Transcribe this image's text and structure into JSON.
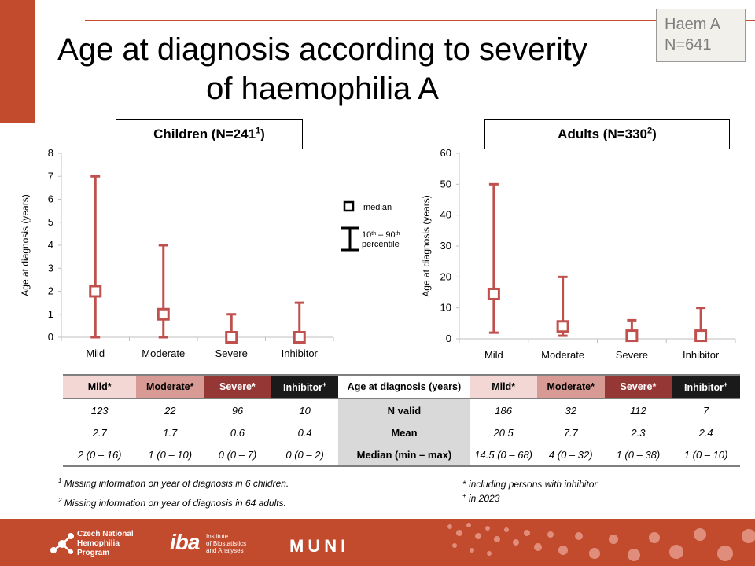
{
  "title": "Age at diagnosis according to severity of haemophilia A",
  "badge": {
    "line1": "Haem A",
    "line2": "N=641"
  },
  "charts": {
    "children": {
      "title": "Children (N=241",
      "sup": "1",
      "suffix": ")"
    },
    "adults": {
      "title": "Adults (N=330",
      "sup": "2",
      "suffix": ")"
    }
  },
  "legend": {
    "median": "median",
    "range_a": "10",
    "range_a_sup": "th",
    "range_b": " – 90",
    "range_b_sup": "th",
    "range_c": "percentile"
  },
  "chart_data": [
    {
      "type": "box",
      "title": "Children (N=241¹)",
      "ylabel": "Age at diagnosis (years)",
      "xlabel": "",
      "categories": [
        "Mild",
        "Moderate",
        "Severe",
        "Inhibitor"
      ],
      "ylim": [
        0,
        8
      ],
      "yticks": [
        0,
        1,
        2,
        3,
        4,
        5,
        6,
        7,
        8
      ],
      "series": [
        {
          "median": [
            2,
            1,
            0,
            0
          ],
          "p10": [
            0,
            0,
            0,
            0
          ],
          "p90": [
            7,
            4,
            1,
            1.5
          ]
        }
      ],
      "grid": false,
      "color": "#c0504d"
    },
    {
      "type": "box",
      "title": "Adults (N=330²)",
      "ylabel": "Age at diagnosis (years)",
      "xlabel": "",
      "categories": [
        "Mild",
        "Moderate",
        "Severe",
        "Inhibitor"
      ],
      "ylim": [
        0,
        60
      ],
      "yticks": [
        0,
        10,
        20,
        30,
        40,
        50,
        60
      ],
      "series": [
        {
          "median": [
            14.5,
            4,
            1,
            1
          ],
          "p10": [
            2,
            1,
            0,
            0
          ],
          "p90": [
            50,
            20,
            6,
            10
          ]
        }
      ],
      "grid": false,
      "color": "#c0504d"
    }
  ],
  "table": {
    "left_headers": [
      {
        "label": "Mild",
        "mark": "*"
      },
      {
        "label": "Moderate",
        "mark": "*"
      },
      {
        "label": "Severe",
        "mark": "*"
      },
      {
        "label": "Inhibitor",
        "mark": "+"
      }
    ],
    "middle_header": "Age at diagnosis (years)",
    "right_headers": [
      {
        "label": "Mild",
        "mark": "*"
      },
      {
        "label": "Moderate",
        "mark": "*"
      },
      {
        "label": "Severe",
        "mark": "*"
      },
      {
        "label": "Inhibitor",
        "mark": "+"
      }
    ],
    "rows": [
      {
        "label": "N valid",
        "children": [
          "123",
          "22",
          "96",
          "10"
        ],
        "adults": [
          "186",
          "32",
          "112",
          "7"
        ]
      },
      {
        "label": "Mean",
        "children": [
          "2.7",
          "1.7",
          "0.6",
          "0.4"
        ],
        "adults": [
          "20.5",
          "7.7",
          "2.3",
          "2.4"
        ]
      },
      {
        "label": "Median (min – max)",
        "children": [
          "2 (0 – 16)",
          "1 (0 – 10)",
          "0 (0 – 7)",
          "0 (0 – 2)"
        ],
        "adults": [
          "14.5 (0 – 68)",
          "4 (0 – 32)",
          "1 (0 – 38)",
          "1 (0 – 10)"
        ]
      }
    ]
  },
  "notes": {
    "n1_sup": "1",
    "n1": " Missing information on year of diagnosis in 6 children.",
    "n2_sup": "2",
    "n2": " Missing information on year of diagnosis in 64 adults.",
    "n3": "* including persons with inhibitor",
    "n4_sup": "+",
    "n4": " in 2023"
  },
  "footer": {
    "logo1": [
      "Czech National",
      "Hemophilia",
      "Program"
    ],
    "logo2_mark": "iba",
    "logo2": [
      "Institute",
      "of Biostatistics",
      "and Analyses"
    ],
    "logo3": "MUNI"
  }
}
